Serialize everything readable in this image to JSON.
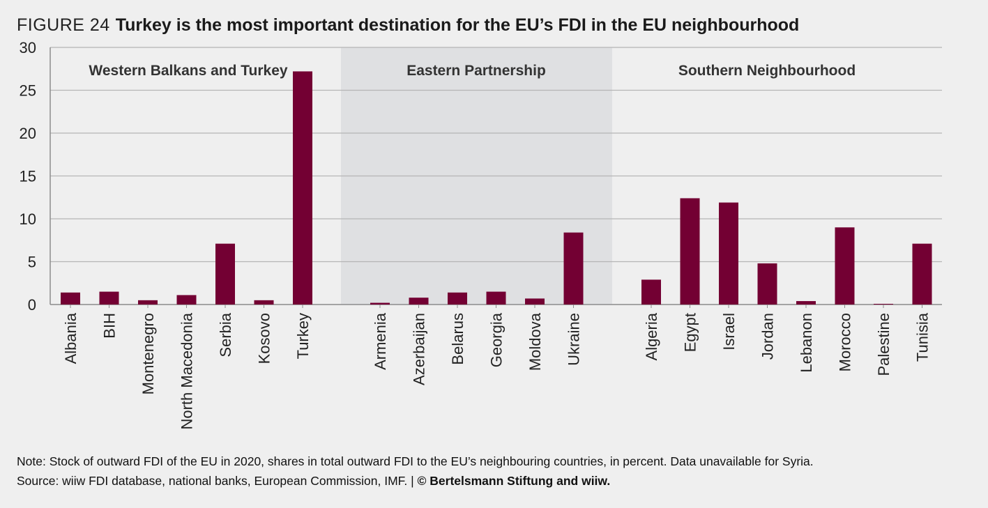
{
  "header": {
    "figure_label": "FIGURE 24",
    "title": "Turkey is the most important destination for the EU’s FDI in the EU neighbourhood"
  },
  "footer": {
    "note": "Note: Stock of outward FDI of the EU in 2020, shares in total outward FDI to the EU’s neighbouring countries, in percent. Data unavailable for Syria.",
    "source": "Source: wiiw FDI database, national banks, European Commission, IMF.  |  ",
    "copyright": "© Bertelsmann Stiftung and wiiw."
  },
  "colors": {
    "bar": "#730033",
    "background": "#efefef",
    "shaded_group": "#dfe0e2",
    "gridline": "#b5b5b5"
  },
  "chart_data": {
    "type": "bar",
    "ylim": [
      0,
      30
    ],
    "yticks": [
      0,
      5,
      10,
      15,
      20,
      25,
      30
    ],
    "grid": true,
    "groups": [
      {
        "name": "Western Balkans and Turkey",
        "shaded": false,
        "categories": [
          "Albania",
          "BIH",
          "Montenegro",
          "North Macedonia",
          "Serbia",
          "Kosovo",
          "Turkey"
        ],
        "values": [
          1.4,
          1.5,
          0.5,
          1.1,
          7.1,
          0.5,
          27.2
        ]
      },
      {
        "name": "Eastern Partnership",
        "shaded": true,
        "categories": [
          "Armenia",
          "Azerbaijan",
          "Belarus",
          "Georgia",
          "Moldova",
          "Ukraine"
        ],
        "values": [
          0.2,
          0.8,
          1.4,
          1.5,
          0.7,
          8.4
        ]
      },
      {
        "name": "Southern Neighbourhood",
        "shaded": false,
        "categories": [
          "Algeria",
          "Egypt",
          "Israel",
          "Jordan",
          "Lebanon",
          "Morocco",
          "Palestine",
          "Tunisia"
        ],
        "values": [
          2.9,
          12.4,
          11.9,
          4.8,
          0.4,
          9.0,
          0.05,
          7.1
        ]
      }
    ]
  }
}
